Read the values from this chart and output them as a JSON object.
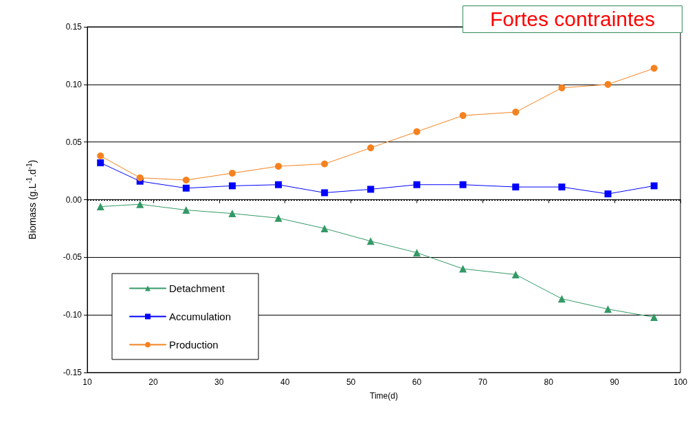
{
  "chart_data": {
    "type": "line",
    "title": "Fortes contraintes",
    "xlabel": "Time(d)",
    "ylabel": "Biomass (g.L$^{-1}$.d$^{-1}$)",
    "x": [
      12,
      18,
      25,
      32,
      39,
      46,
      53,
      60,
      67,
      75,
      82,
      89,
      96
    ],
    "series": [
      {
        "name": "Detachment",
        "color": "#339966",
        "marker": "triangle",
        "values": [
          -0.006,
          -0.004,
          -0.009,
          -0.012,
          -0.016,
          -0.025,
          -0.036,
          -0.046,
          -0.06,
          -0.065,
          -0.086,
          -0.095,
          -0.102
        ]
      },
      {
        "name": "Accumulation",
        "color": "#0000ff",
        "marker": "square",
        "values": [
          0.032,
          0.016,
          0.01,
          0.012,
          0.013,
          0.006,
          0.009,
          0.013,
          0.013,
          0.011,
          0.011,
          0.005,
          0.012
        ]
      },
      {
        "name": "Production",
        "color": "#f58220",
        "marker": "circle",
        "values": [
          0.038,
          0.019,
          0.017,
          0.023,
          0.029,
          0.031,
          0.045,
          0.059,
          0.073,
          0.076,
          0.097,
          0.1,
          0.114
        ]
      }
    ],
    "xlim": [
      10,
      100
    ],
    "xticks": [
      10,
      20,
      30,
      40,
      50,
      60,
      70,
      80,
      90,
      100
    ],
    "ylim": [
      -0.15,
      0.15
    ],
    "yticks": [
      {
        "value": -0.15,
        "label": "-0.15"
      },
      {
        "value": -0.1,
        "label": "-0.10"
      },
      {
        "value": -0.05,
        "label": "-0.05"
      },
      {
        "value": 0,
        "label": "0.00"
      },
      {
        "value": 0.05,
        "label": "0.05"
      },
      {
        "value": 0.1,
        "label": "0.10"
      },
      {
        "value": 0.15,
        "label": "0.15"
      }
    ],
    "ref_lines": [
      {
        "axis": "y",
        "value": 0,
        "color": "#000000",
        "line_style": "dotted"
      }
    ],
    "grid": "y",
    "legend": "bottom left",
    "line_style": "solid"
  }
}
